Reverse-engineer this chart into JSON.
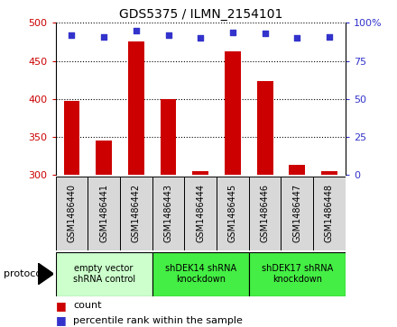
{
  "title": "GDS5375 / ILMN_2154101",
  "categories": [
    "GSM1486440",
    "GSM1486441",
    "GSM1486442",
    "GSM1486443",
    "GSM1486444",
    "GSM1486445",
    "GSM1486446",
    "GSM1486447",
    "GSM1486448"
  ],
  "bar_values": [
    397,
    345,
    476,
    400,
    305,
    462,
    424,
    313,
    305
  ],
  "percentile_values": [
    92,
    91,
    95,
    92,
    90,
    94,
    93,
    90,
    91
  ],
  "ylim_left": [
    300,
    500
  ],
  "ylim_right": [
    0,
    100
  ],
  "yticks_left": [
    300,
    350,
    400,
    450,
    500
  ],
  "yticks_right": [
    0,
    25,
    50,
    75,
    100
  ],
  "yticklabels_right": [
    "0",
    "25",
    "50",
    "75",
    "100%"
  ],
  "bar_color": "#cc0000",
  "dot_color": "#3333cc",
  "bar_width": 0.5,
  "dot_size": 25,
  "groups": [
    {
      "label": "empty vector\nshRNA control",
      "start": 0,
      "end": 3,
      "color": "#ccffcc"
    },
    {
      "label": "shDEK14 shRNA\nknockdown",
      "start": 3,
      "end": 6,
      "color": "#44ee44"
    },
    {
      "label": "shDEK17 shRNA\nknockdown",
      "start": 6,
      "end": 9,
      "color": "#44ee44"
    }
  ],
  "sample_box_color": "#d8d8d8",
  "legend_count_label": "count",
  "legend_percentile_label": "percentile rank within the sample",
  "protocol_label": "protocol",
  "tick_label_color_left": "#cc0000",
  "tick_label_color_right": "#3333cc",
  "tick_fontsize": 8,
  "title_fontsize": 10
}
